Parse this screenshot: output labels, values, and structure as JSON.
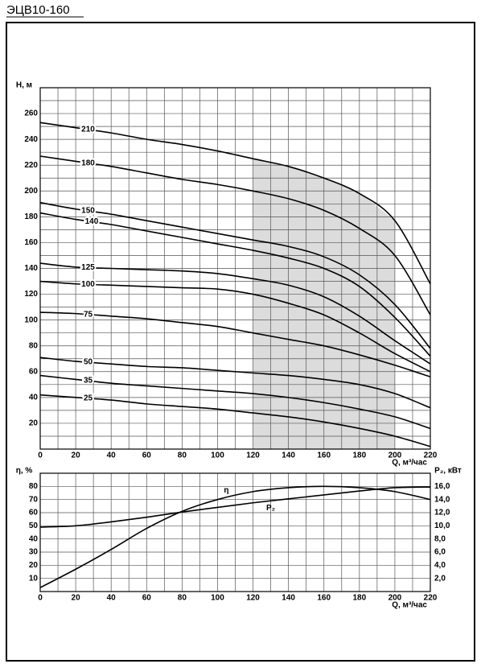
{
  "chart_data": [
    {
      "type": "line",
      "title": "ЭЦВ10-160",
      "y_label": "H, м",
      "x_label": "Q, м³/час",
      "x": [
        0,
        20,
        40,
        60,
        80,
        100,
        120,
        140,
        160,
        180,
        200,
        220
      ],
      "xlim": [
        0,
        220
      ],
      "ylim": [
        0,
        280
      ],
      "xticks": [
        0,
        20,
        40,
        60,
        80,
        100,
        120,
        140,
        160,
        180,
        200,
        220
      ],
      "yticks": [
        20,
        40,
        60,
        80,
        100,
        120,
        140,
        160,
        180,
        200,
        220,
        240,
        260
      ],
      "xgrid": [
        0,
        10,
        20,
        30,
        40,
        50,
        60,
        70,
        80,
        90,
        100,
        110,
        120,
        130,
        140,
        150,
        160,
        170,
        180,
        190,
        200,
        210,
        220
      ],
      "ygrid": [
        0,
        10,
        20,
        30,
        40,
        50,
        60,
        70,
        80,
        90,
        100,
        110,
        120,
        130,
        140,
        150,
        160,
        170,
        180,
        190,
        200,
        210,
        220,
        230,
        240,
        250,
        260,
        270,
        280
      ],
      "highlight_x": [
        120,
        200
      ],
      "highlight_color": "#dcdcdc",
      "color": "#000000",
      "series": [
        {
          "name": "210",
          "values": [
            253,
            249,
            245,
            240,
            236,
            231,
            225,
            219,
            210,
            198,
            177,
            128
          ]
        },
        {
          "name": "180",
          "values": [
            227,
            223,
            219,
            214,
            209,
            205,
            200,
            194,
            185,
            171,
            150,
            104
          ]
        },
        {
          "name": "150",
          "values": [
            191,
            186,
            182,
            177,
            172,
            167,
            162,
            157,
            149,
            135,
            112,
            78
          ]
        },
        {
          "name": "140",
          "values": [
            183,
            178,
            174,
            169,
            164,
            159,
            154,
            148,
            140,
            126,
            102,
            72
          ]
        },
        {
          "name": "125",
          "values": [
            144,
            141,
            140,
            139,
            138,
            136,
            132,
            127,
            118,
            103,
            84,
            66
          ]
        },
        {
          "name": "100",
          "values": [
            130,
            128,
            127,
            126,
            125,
            124,
            120,
            113,
            104,
            90,
            74,
            60
          ]
        },
        {
          "name": "75",
          "values": [
            106,
            105,
            103,
            101,
            98,
            95,
            90,
            85,
            80,
            73,
            65,
            56
          ]
        },
        {
          "name": "50",
          "values": [
            71,
            68,
            66,
            64,
            63,
            61,
            59,
            57,
            54,
            50,
            43,
            32
          ]
        },
        {
          "name": "35",
          "values": [
            57,
            54,
            51,
            49,
            47,
            45,
            43,
            40,
            36,
            31,
            25,
            16
          ]
        },
        {
          "name": "25",
          "values": [
            42,
            40,
            38,
            35,
            33,
            31,
            28,
            25,
            21,
            16,
            10,
            2
          ]
        }
      ]
    },
    {
      "type": "line",
      "y_label": "η, %",
      "y2_label": "P₂, кВт",
      "x_label": "Q, м³/час",
      "x": [
        0,
        20,
        40,
        60,
        80,
        100,
        120,
        140,
        160,
        180,
        200,
        220
      ],
      "xlim": [
        0,
        220
      ],
      "ylim": [
        0,
        90
      ],
      "y2lim": [
        0,
        18
      ],
      "xticks": [
        0,
        20,
        40,
        60,
        80,
        100,
        120,
        140,
        160,
        180,
        200,
        220
      ],
      "yticks": [
        10,
        20,
        30,
        40,
        50,
        60,
        70,
        80
      ],
      "y2ticks": [
        {
          "value": 2,
          "label": "2,0"
        },
        {
          "value": 4,
          "label": "4,0"
        },
        {
          "value": 6,
          "label": "6,0"
        },
        {
          "value": 8,
          "label": "8,0"
        },
        {
          "value": 10,
          "label": "10,0"
        },
        {
          "value": 12,
          "label": "12,0"
        },
        {
          "value": 14,
          "label": "14,0"
        },
        {
          "value": 16,
          "label": "16,0"
        }
      ],
      "xgrid": [
        0,
        10,
        20,
        30,
        40,
        50,
        60,
        70,
        80,
        90,
        100,
        110,
        120,
        130,
        140,
        150,
        160,
        170,
        180,
        190,
        200,
        210,
        220
      ],
      "ygrid": [
        0,
        10,
        20,
        30,
        40,
        50,
        60,
        70,
        80,
        90
      ],
      "color": "#000000",
      "series": [
        {
          "name": "η",
          "values": [
            3,
            17,
            32,
            48,
            61,
            70,
            76,
            79,
            80,
            79,
            76,
            70
          ]
        },
        {
          "name": "P₂",
          "axis": "y2",
          "values": [
            9.8,
            10.0,
            10.6,
            11.3,
            12.1,
            12.8,
            13.5,
            14.1,
            14.7,
            15.3,
            15.8,
            15.9
          ]
        }
      ]
    }
  ]
}
